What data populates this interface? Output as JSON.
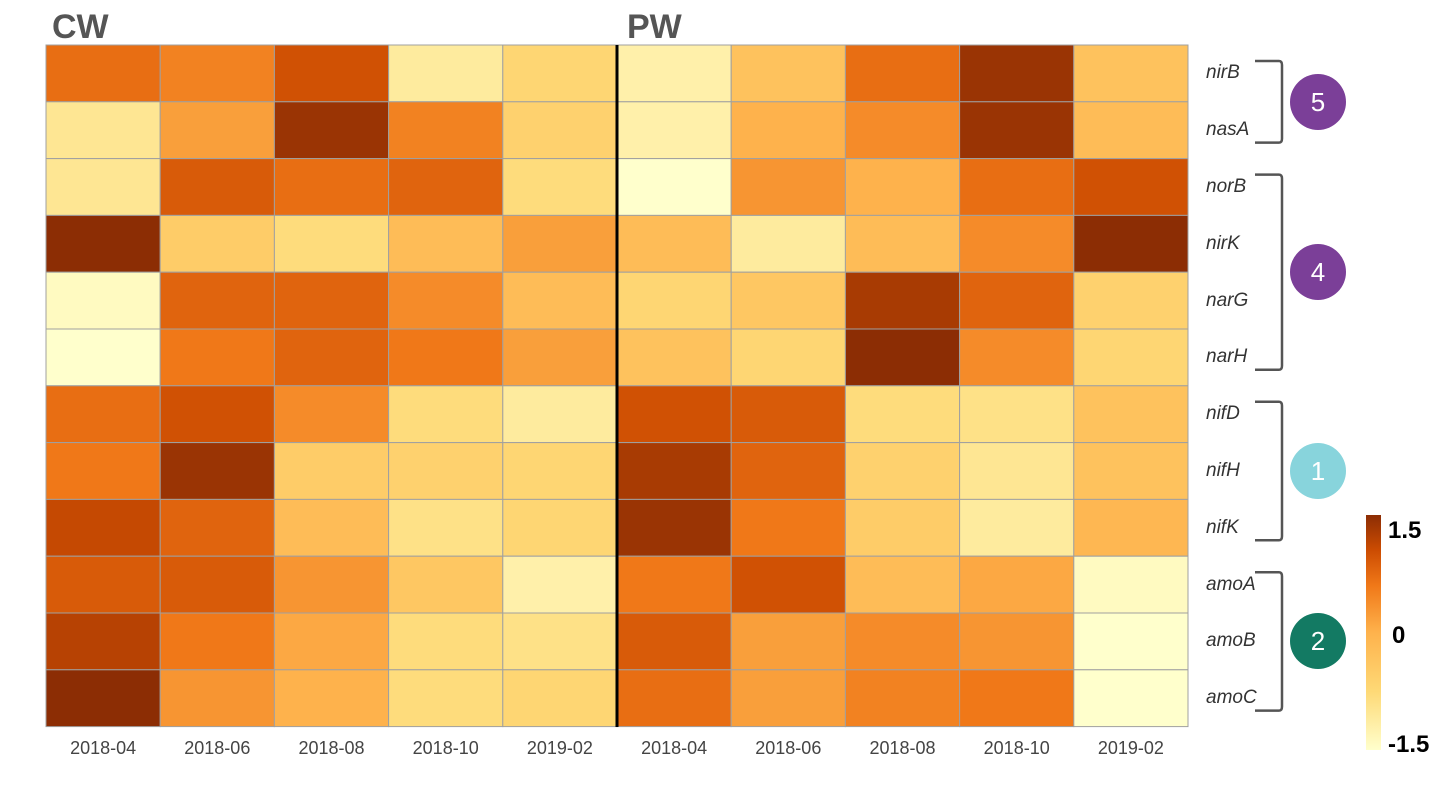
{
  "chart_data": {
    "type": "heatmap",
    "panels": [
      {
        "name": "CW",
        "columns": [
          "2018-04",
          "2018-06",
          "2018-08",
          "2018-10",
          "2019-02"
        ]
      },
      {
        "name": "PW",
        "columns": [
          "2018-04",
          "2018-06",
          "2018-08",
          "2018-10",
          "2019-02"
        ]
      }
    ],
    "rows": [
      "nirB",
      "nasA",
      "norB",
      "nirK",
      "narG",
      "narH",
      "nifD",
      "nifH",
      "nifK",
      "amoA",
      "amoB",
      "amoC"
    ],
    "values": [
      [
        0.7,
        0.5,
        1.0,
        -1.1,
        -0.7,
        -1.2,
        -0.3,
        0.7,
        1.4,
        -0.3
      ],
      [
        -1.0,
        0.2,
        1.4,
        0.5,
        -0.6,
        -1.2,
        0.0,
        0.4,
        1.4,
        -0.2
      ],
      [
        -1.0,
        0.9,
        0.7,
        0.8,
        -0.8,
        -1.5,
        0.3,
        0.0,
        0.7,
        1.0
      ],
      [
        1.6,
        -0.5,
        -0.8,
        -0.2,
        0.2,
        -0.2,
        -1.1,
        -0.2,
        0.4,
        1.6
      ],
      [
        -1.4,
        0.8,
        0.8,
        0.4,
        -0.2,
        -0.7,
        -0.4,
        1.3,
        0.8,
        -0.6
      ],
      [
        -1.5,
        0.6,
        0.8,
        0.6,
        0.2,
        -0.3,
        -0.7,
        1.5,
        0.4,
        -0.7
      ],
      [
        0.7,
        1.0,
        0.4,
        -0.8,
        -1.1,
        1.0,
        0.9,
        -0.8,
        -0.9,
        -0.3
      ],
      [
        0.6,
        1.4,
        -0.5,
        -0.6,
        -0.7,
        1.3,
        0.8,
        -0.6,
        -1.0,
        -0.3
      ],
      [
        1.1,
        0.8,
        -0.2,
        -0.9,
        -0.7,
        1.4,
        0.6,
        -0.5,
        -1.1,
        -0.1
      ],
      [
        0.9,
        0.9,
        0.3,
        -0.4,
        -1.2,
        0.6,
        1.0,
        -0.2,
        0.1,
        -1.4
      ],
      [
        1.2,
        0.6,
        0.1,
        -0.8,
        -0.9,
        0.9,
        0.2,
        0.4,
        0.3,
        -1.5
      ],
      [
        1.5,
        0.3,
        0.0,
        -0.8,
        -0.7,
        0.7,
        0.2,
        0.5,
        0.6,
        -1.5
      ]
    ],
    "colorbar": {
      "max_label": "1.5",
      "mid_label": "0",
      "min_label": "-1.5",
      "range": [
        -1.5,
        1.5
      ]
    },
    "colors": {
      "low": "#FFFFCC",
      "mid": "#FEB24C",
      "high": "#8C2D04"
    },
    "groups": [
      {
        "label": "5",
        "genes": [
          "nirB",
          "nasA"
        ],
        "color": "#7B3F98"
      },
      {
        "label": "4",
        "genes": [
          "norB",
          "nirK",
          "narG",
          "narH"
        ],
        "color": "#7B3F98"
      },
      {
        "label": "1",
        "genes": [
          "nifD",
          "nifH",
          "nifK"
        ],
        "color": "#88D4DC"
      },
      {
        "label": "2",
        "genes": [
          "amoA",
          "amoB",
          "amoC"
        ],
        "color": "#137A63"
      }
    ]
  }
}
